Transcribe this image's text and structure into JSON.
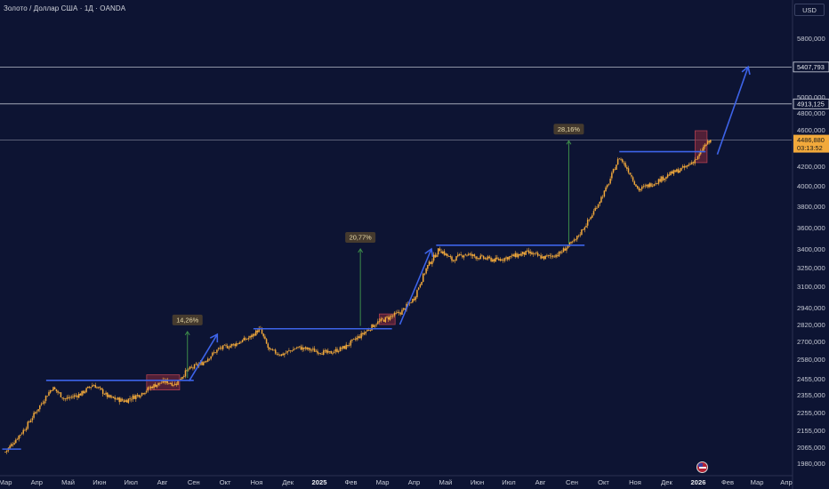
{
  "header": {
    "title": "Золото / Доллар США · 1Д · OANDA",
    "currency_button": "USD"
  },
  "colors": {
    "background": "#0d1433",
    "candle": "#f2a93b",
    "trendline": "#3d63e8",
    "highlight_box": "#8a2a3a",
    "measure_arrow": "#3d8c4a",
    "level_line": "#d7dbe6",
    "price_tag_bg": "#f2a93b"
  },
  "chart_data": {
    "type": "candlestick",
    "title": "Золото / Доллар США · 1Д · OANDA",
    "y_axis": {
      "currency": "USD",
      "ylim": [
        1940,
        6050
      ],
      "ticks": [
        {
          "value": 5800,
          "label": "5800,000"
        },
        {
          "value": 5000,
          "label": "5000,000"
        },
        {
          "value": 4800,
          "label": "4800,000"
        },
        {
          "value": 4600,
          "label": "4600,000"
        },
        {
          "value": 4200,
          "label": "4200,000"
        },
        {
          "value": 4000,
          "label": "4000,000"
        },
        {
          "value": 3800,
          "label": "3800,000"
        },
        {
          "value": 3600,
          "label": "3600,000"
        },
        {
          "value": 3400,
          "label": "3400,000"
        },
        {
          "value": 3250,
          "label": "3250,000"
        },
        {
          "value": 3100,
          "label": "3100,000"
        },
        {
          "value": 2940,
          "label": "2940,000"
        },
        {
          "value": 2820,
          "label": "2820,000"
        },
        {
          "value": 2700,
          "label": "2700,000"
        },
        {
          "value": 2580,
          "label": "2580,000"
        },
        {
          "value": 2455,
          "label": "2455,000"
        },
        {
          "value": 2355,
          "label": "2355,000"
        },
        {
          "value": 2255,
          "label": "2255,000"
        },
        {
          "value": 2155,
          "label": "2155,000"
        },
        {
          "value": 2065,
          "label": "2065,000"
        },
        {
          "value": 1980,
          "label": "1980,000"
        }
      ]
    },
    "x_axis": {
      "ticks": [
        {
          "label": "Мар",
          "bold": false
        },
        {
          "label": "Апр",
          "bold": false
        },
        {
          "label": "Май",
          "bold": false
        },
        {
          "label": "Июн",
          "bold": false
        },
        {
          "label": "Июл",
          "bold": false
        },
        {
          "label": "Авг",
          "bold": false
        },
        {
          "label": "Сен",
          "bold": false
        },
        {
          "label": "Окт",
          "bold": false
        },
        {
          "label": "Ноя",
          "bold": false
        },
        {
          "label": "Дек",
          "bold": false
        },
        {
          "label": "2025",
          "bold": true
        },
        {
          "label": "Фев",
          "bold": false
        },
        {
          "label": "Мар",
          "bold": false
        },
        {
          "label": "Апр",
          "bold": false
        },
        {
          "label": "Май",
          "bold": false
        },
        {
          "label": "Июн",
          "bold": false
        },
        {
          "label": "Июл",
          "bold": false
        },
        {
          "label": "Авг",
          "bold": false
        },
        {
          "label": "Сен",
          "bold": false
        },
        {
          "label": "Окт",
          "bold": false
        },
        {
          "label": "Ноя",
          "bold": false
        },
        {
          "label": "Дек",
          "bold": false
        },
        {
          "label": "2026",
          "bold": true
        },
        {
          "label": "Фев",
          "bold": false
        },
        {
          "label": "Мар",
          "bold": false
        },
        {
          "label": "Апр",
          "bold": false
        }
      ]
    },
    "price_path": [
      [
        0,
        2040
      ],
      [
        0.6,
        2160
      ],
      [
        1.2,
        2320
      ],
      [
        1.5,
        2400
      ],
      [
        1.9,
        2330
      ],
      [
        2.4,
        2360
      ],
      [
        2.8,
        2420
      ],
      [
        3.3,
        2340
      ],
      [
        3.8,
        2320
      ],
      [
        4.3,
        2360
      ],
      [
        4.7,
        2410
      ],
      [
        5.1,
        2440
      ],
      [
        5.4,
        2420
      ],
      [
        5.8,
        2510
      ],
      [
        6.3,
        2560
      ],
      [
        6.8,
        2650
      ],
      [
        7.3,
        2680
      ],
      [
        7.8,
        2730
      ],
      [
        8.1,
        2790
      ],
      [
        8.4,
        2640
      ],
      [
        8.8,
        2610
      ],
      [
        9.3,
        2660
      ],
      [
        9.8,
        2640
      ],
      [
        10.3,
        2620
      ],
      [
        10.8,
        2660
      ],
      [
        11.3,
        2740
      ],
      [
        11.8,
        2830
      ],
      [
        12.2,
        2870
      ],
      [
        12.6,
        2910
      ],
      [
        13.0,
        3010
      ],
      [
        13.4,
        3250
      ],
      [
        13.8,
        3400
      ],
      [
        14.2,
        3310
      ],
      [
        14.6,
        3360
      ],
      [
        15.1,
        3330
      ],
      [
        15.6,
        3310
      ],
      [
        16.1,
        3340
      ],
      [
        16.6,
        3370
      ],
      [
        17.1,
        3330
      ],
      [
        17.6,
        3360
      ],
      [
        18.1,
        3480
      ],
      [
        18.6,
        3700
      ],
      [
        19.1,
        3980
      ],
      [
        19.5,
        4300
      ],
      [
        19.8,
        4150
      ],
      [
        20.1,
        3960
      ],
      [
        20.6,
        4030
      ],
      [
        21.1,
        4120
      ],
      [
        21.6,
        4190
      ],
      [
        22.0,
        4300
      ],
      [
        22.2,
        4420
      ],
      [
        22.45,
        4487
      ]
    ],
    "last_price": 4486.88,
    "horizontal_levels": [
      {
        "value": 5407.793,
        "label": "5407,793"
      },
      {
        "value": 4913.125,
        "label": "4913,125"
      },
      {
        "value": 4486.88,
        "label": "4486,880",
        "countdown": "03:13:52"
      }
    ],
    "range_lines": [
      {
        "x_start": -0.1,
        "x_end": 0.5,
        "price": 2055
      },
      {
        "x_start": 1.3,
        "x_end": 6.0,
        "price": 2445
      },
      {
        "x_start": 7.9,
        "x_end": 12.3,
        "price": 2790
      },
      {
        "x_start": 13.7,
        "x_end": 18.4,
        "price": 3435
      },
      {
        "x_start": 19.5,
        "x_end": 22.25,
        "price": 4360
      }
    ],
    "highlight_boxes": [
      {
        "x_start": 4.5,
        "x_end": 5.55,
        "price_low": 2385,
        "price_high": 2480
      },
      {
        "x_start": 11.9,
        "x_end": 12.4,
        "price_low": 2820,
        "price_high": 2895
      },
      {
        "x_start": 21.9,
        "x_end": 22.3,
        "price_low": 4240,
        "price_high": 4590
      }
    ],
    "projection_arrows": [
      {
        "from": [
          5.85,
          2440
        ],
        "to": [
          6.75,
          2750
        ]
      },
      {
        "from": [
          12.55,
          2820
        ],
        "to": [
          13.55,
          3400
        ]
      },
      {
        "from": [
          22.65,
          4330
        ],
        "to": [
          23.7,
          5410
        ]
      }
    ],
    "measure_arrows": [
      {
        "x": 5.8,
        "price_from": 2460,
        "price_to": 2770,
        "label": "14,26%"
      },
      {
        "x": 11.3,
        "price_from": 2810,
        "price_to": 3400,
        "label": "20,77%"
      },
      {
        "x": 17.9,
        "price_from": 3450,
        "price_to": 4480,
        "label": "28,16%"
      }
    ]
  }
}
